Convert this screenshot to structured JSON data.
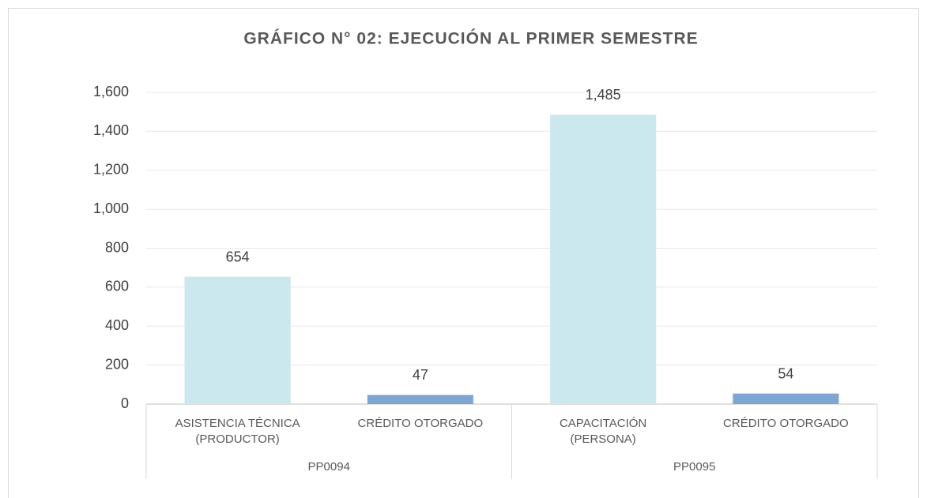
{
  "chart_data": {
    "type": "bar",
    "title": "GRÁFICO N° 02: EJECUCIÓN AL PRIMER SEMESTRE",
    "categories": [
      [
        "ASISTENCIA TÉCNICA",
        "(PRODUCTOR)"
      ],
      [
        "CRÉDITO OTORGADO"
      ],
      [
        "CAPACITACIÓN",
        "(PERSONA)"
      ],
      [
        "CRÉDITO OTORGADO"
      ]
    ],
    "groups": [
      "PP0094",
      "PP0095"
    ],
    "values": [
      654,
      47,
      1485,
      54
    ],
    "value_labels": [
      "654",
      "47",
      "1,485",
      "54"
    ],
    "colors": [
      "#cce8ef",
      "#7fa6d2",
      "#cce8ef",
      "#7fa6d2"
    ],
    "ylim": [
      0,
      1600
    ],
    "yticks": [
      0,
      200,
      400,
      600,
      800,
      {
        "value": 1000,
        "label": "1,000"
      },
      {
        "value": 1200,
        "label": "1,200"
      },
      {
        "value": 1400,
        "label": "1,400"
      },
      {
        "value": 1600,
        "label": "1,600"
      }
    ],
    "grid": true
  }
}
